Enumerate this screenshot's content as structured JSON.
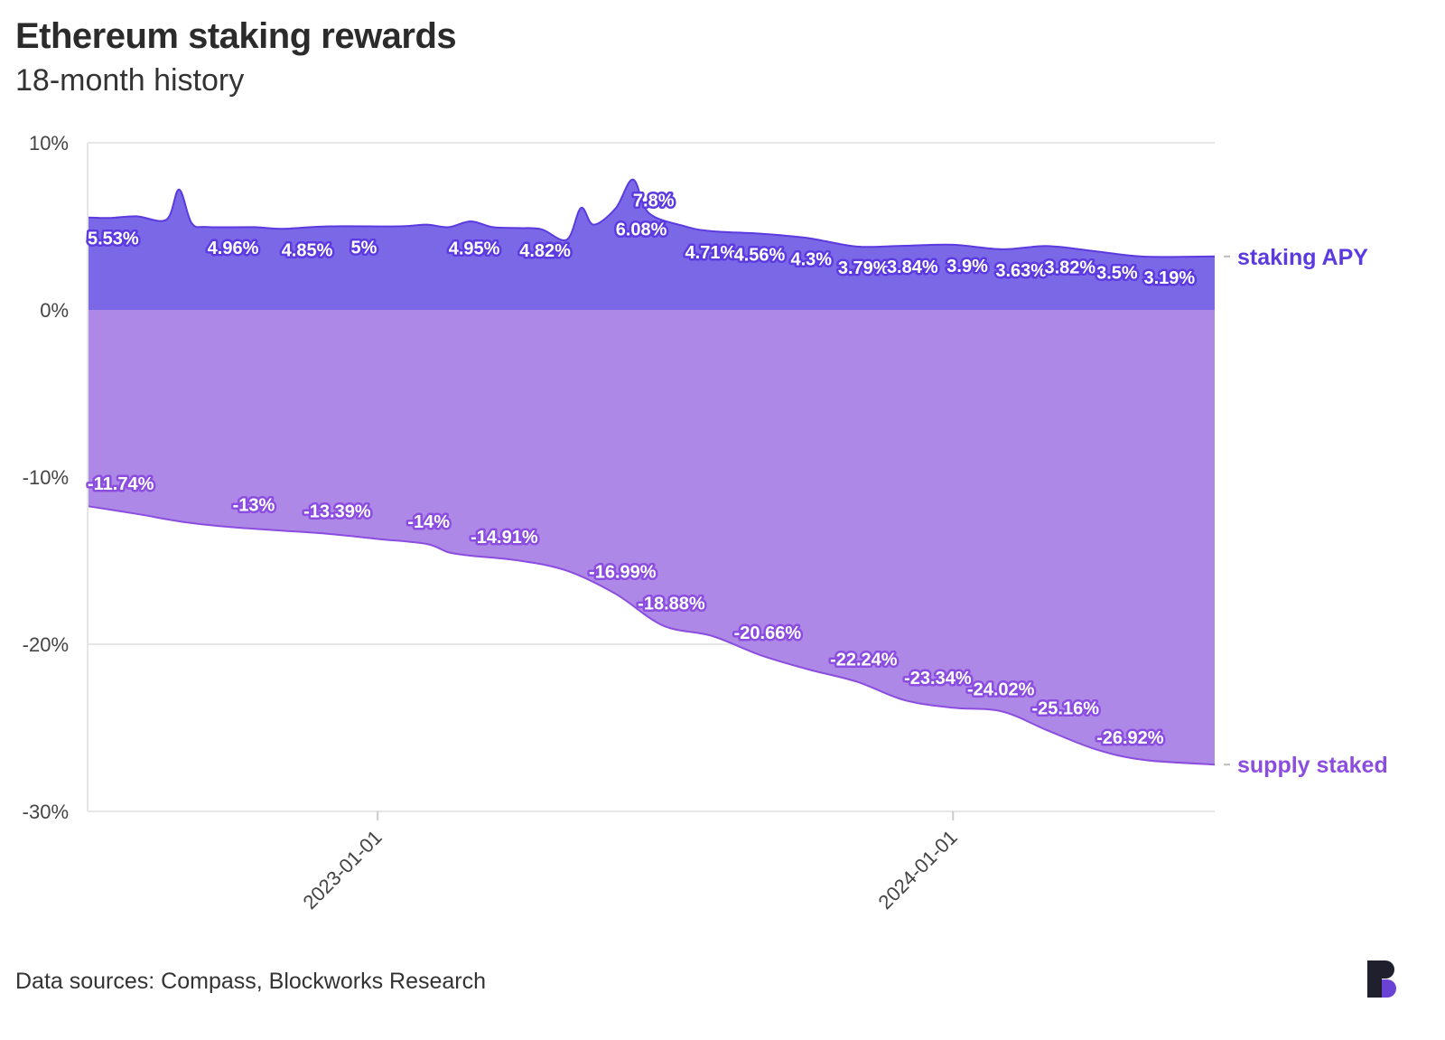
{
  "title": "Ethereum staking rewards",
  "subtitle": "18-month history",
  "source": "Data sources: Compass, Blockworks Research",
  "chart_data": {
    "type": "area",
    "title": "Ethereum staking rewards",
    "subtitle": "18-month history",
    "xlabel": "",
    "ylabel": "",
    "x_range": [
      "2022-07-01",
      "2024-06-15"
    ],
    "ylim": [
      -30,
      10
    ],
    "yticks": [
      10,
      0,
      -10,
      -20,
      -30
    ],
    "ytick_labels": [
      "10%",
      "0%",
      "-10%",
      "-20%",
      "-30%"
    ],
    "xticks": [
      "2023-01-01",
      "2024-01-01"
    ],
    "grid": "horizontal",
    "legend": "end-of-line labels on right",
    "series": [
      {
        "name": "staking APY",
        "color": "#5b3ae0",
        "fill": "#7b68e6",
        "points": [
          [
            "2022-07-01",
            5.53
          ],
          [
            "2022-07-15",
            5.5
          ],
          [
            "2022-08-01",
            5.6
          ],
          [
            "2022-08-20",
            5.4
          ],
          [
            "2022-08-28",
            7.2
          ],
          [
            "2022-09-05",
            5.2
          ],
          [
            "2022-09-15",
            4.96
          ],
          [
            "2022-10-15",
            4.95
          ],
          [
            "2022-11-01",
            4.85
          ],
          [
            "2022-12-01",
            5.0
          ],
          [
            "2023-01-15",
            5.0
          ],
          [
            "2023-02-01",
            5.1
          ],
          [
            "2023-02-15",
            4.95
          ],
          [
            "2023-03-01",
            5.3
          ],
          [
            "2023-03-15",
            4.95
          ],
          [
            "2023-04-01",
            4.9
          ],
          [
            "2023-04-15",
            4.82
          ],
          [
            "2023-05-01",
            4.2
          ],
          [
            "2023-05-10",
            6.1
          ],
          [
            "2023-05-18",
            5.1
          ],
          [
            "2023-06-01",
            6.08
          ],
          [
            "2023-06-12",
            7.8
          ],
          [
            "2023-06-22",
            5.8
          ],
          [
            "2023-07-15",
            5.0
          ],
          [
            "2023-08-01",
            4.71
          ],
          [
            "2023-09-01",
            4.56
          ],
          [
            "2023-10-01",
            4.3
          ],
          [
            "2023-11-01",
            3.79
          ],
          [
            "2023-12-01",
            3.84
          ],
          [
            "2024-01-01",
            3.9
          ],
          [
            "2024-02-01",
            3.63
          ],
          [
            "2024-03-01",
            3.82
          ],
          [
            "2024-04-01",
            3.5
          ],
          [
            "2024-05-01",
            3.19
          ],
          [
            "2024-06-15",
            3.2
          ]
        ],
        "labels": [
          [
            "2022-07-01",
            5.53
          ],
          [
            "2022-09-15",
            4.96
          ],
          [
            "2022-11-01",
            4.85
          ],
          [
            "2022-12-15",
            5.0
          ],
          [
            "2023-02-15",
            4.95
          ],
          [
            "2023-04-01",
            4.82
          ],
          [
            "2023-06-01",
            6.08
          ],
          [
            "2023-06-12",
            7.8
          ],
          [
            "2023-07-15",
            4.71
          ],
          [
            "2023-08-15",
            4.56
          ],
          [
            "2023-09-20",
            4.3
          ],
          [
            "2023-10-20",
            3.79
          ],
          [
            "2023-11-20",
            3.84
          ],
          [
            "2023-12-28",
            3.9
          ],
          [
            "2024-01-28",
            3.63
          ],
          [
            "2024-02-28",
            3.82
          ],
          [
            "2024-04-01",
            3.5
          ],
          [
            "2024-05-01",
            3.19
          ]
        ]
      },
      {
        "name": "supply staked",
        "color": "#8b4de0",
        "fill": "#ae88e6",
        "points": [
          [
            "2022-07-01",
            -11.74
          ],
          [
            "2022-08-01",
            -12.2
          ],
          [
            "2022-09-01",
            -12.7
          ],
          [
            "2022-10-01",
            -13.0
          ],
          [
            "2022-11-01",
            -13.2
          ],
          [
            "2022-12-01",
            -13.4
          ],
          [
            "2023-01-01",
            -13.7
          ],
          [
            "2023-02-01",
            -14.0
          ],
          [
            "2023-02-15",
            -14.5
          ],
          [
            "2023-03-01",
            -14.7
          ],
          [
            "2023-04-01",
            -15.0
          ],
          [
            "2023-05-01",
            -15.6
          ],
          [
            "2023-06-01",
            -16.99
          ],
          [
            "2023-07-01",
            -18.88
          ],
          [
            "2023-08-01",
            -19.5
          ],
          [
            "2023-09-01",
            -20.66
          ],
          [
            "2023-10-01",
            -21.5
          ],
          [
            "2023-11-01",
            -22.24
          ],
          [
            "2023-12-01",
            -23.34
          ],
          [
            "2024-01-01",
            -23.8
          ],
          [
            "2024-02-01",
            -24.02
          ],
          [
            "2024-03-01",
            -25.16
          ],
          [
            "2024-04-01",
            -26.3
          ],
          [
            "2024-05-01",
            -26.92
          ],
          [
            "2024-06-15",
            -27.2
          ]
        ],
        "labels": [
          [
            "2022-07-01",
            -11.74
          ],
          [
            "2022-10-01",
            -13.0
          ],
          [
            "2022-11-15",
            -13.39
          ],
          [
            "2023-01-20",
            -14.0
          ],
          [
            "2023-03-01",
            -14.91
          ],
          [
            "2023-05-15",
            -16.99
          ],
          [
            "2023-06-15",
            -18.88
          ],
          [
            "2023-08-15",
            -20.66
          ],
          [
            "2023-10-15",
            -22.24
          ],
          [
            "2023-12-01",
            -23.34
          ],
          [
            "2024-01-10",
            -24.02
          ],
          [
            "2024-02-20",
            -25.16
          ],
          [
            "2024-04-01",
            -26.92
          ]
        ]
      }
    ]
  }
}
